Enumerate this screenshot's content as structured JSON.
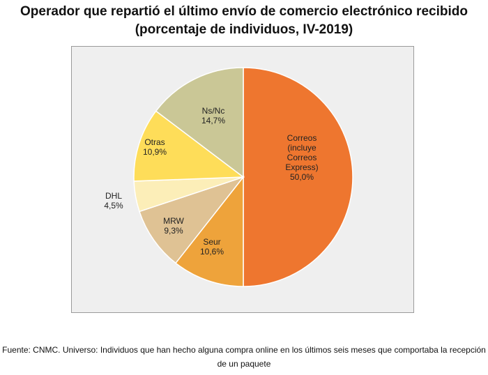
{
  "chart_data": {
    "type": "pie",
    "title": "Operador que repartió el último envío de comercio electrónico recibido",
    "subtitle": "(porcentaje de individuos, IV-2019)",
    "slices": [
      {
        "label": "Correos\n(incluye\nCorreos\nExpress)",
        "value_label": "50,0%",
        "value": 50.0,
        "color": "#ee762f"
      },
      {
        "label": "Seur",
        "value_label": "10,6%",
        "value": 10.6,
        "color": "#eea33b"
      },
      {
        "label": "MRW",
        "value_label": "9,3%",
        "value": 9.3,
        "color": "#dfc294"
      },
      {
        "label": "DHL",
        "value_label": "4,5%",
        "value": 4.5,
        "color": "#fceeb8"
      },
      {
        "label": "Otras",
        "value_label": "10,9%",
        "value": 10.9,
        "color": "#fedd59"
      },
      {
        "label": "Ns/Nc",
        "value_label": "14,7%",
        "value": 14.7,
        "color": "#cac796"
      }
    ],
    "start": "top",
    "direction": "clockwise",
    "legend": "none"
  },
  "footer": {
    "source": "Fuente: CNMC. Universo: Individuos que han hecho alguna compra online en los últimos seis meses que comportaba la recepción de un paquete"
  }
}
